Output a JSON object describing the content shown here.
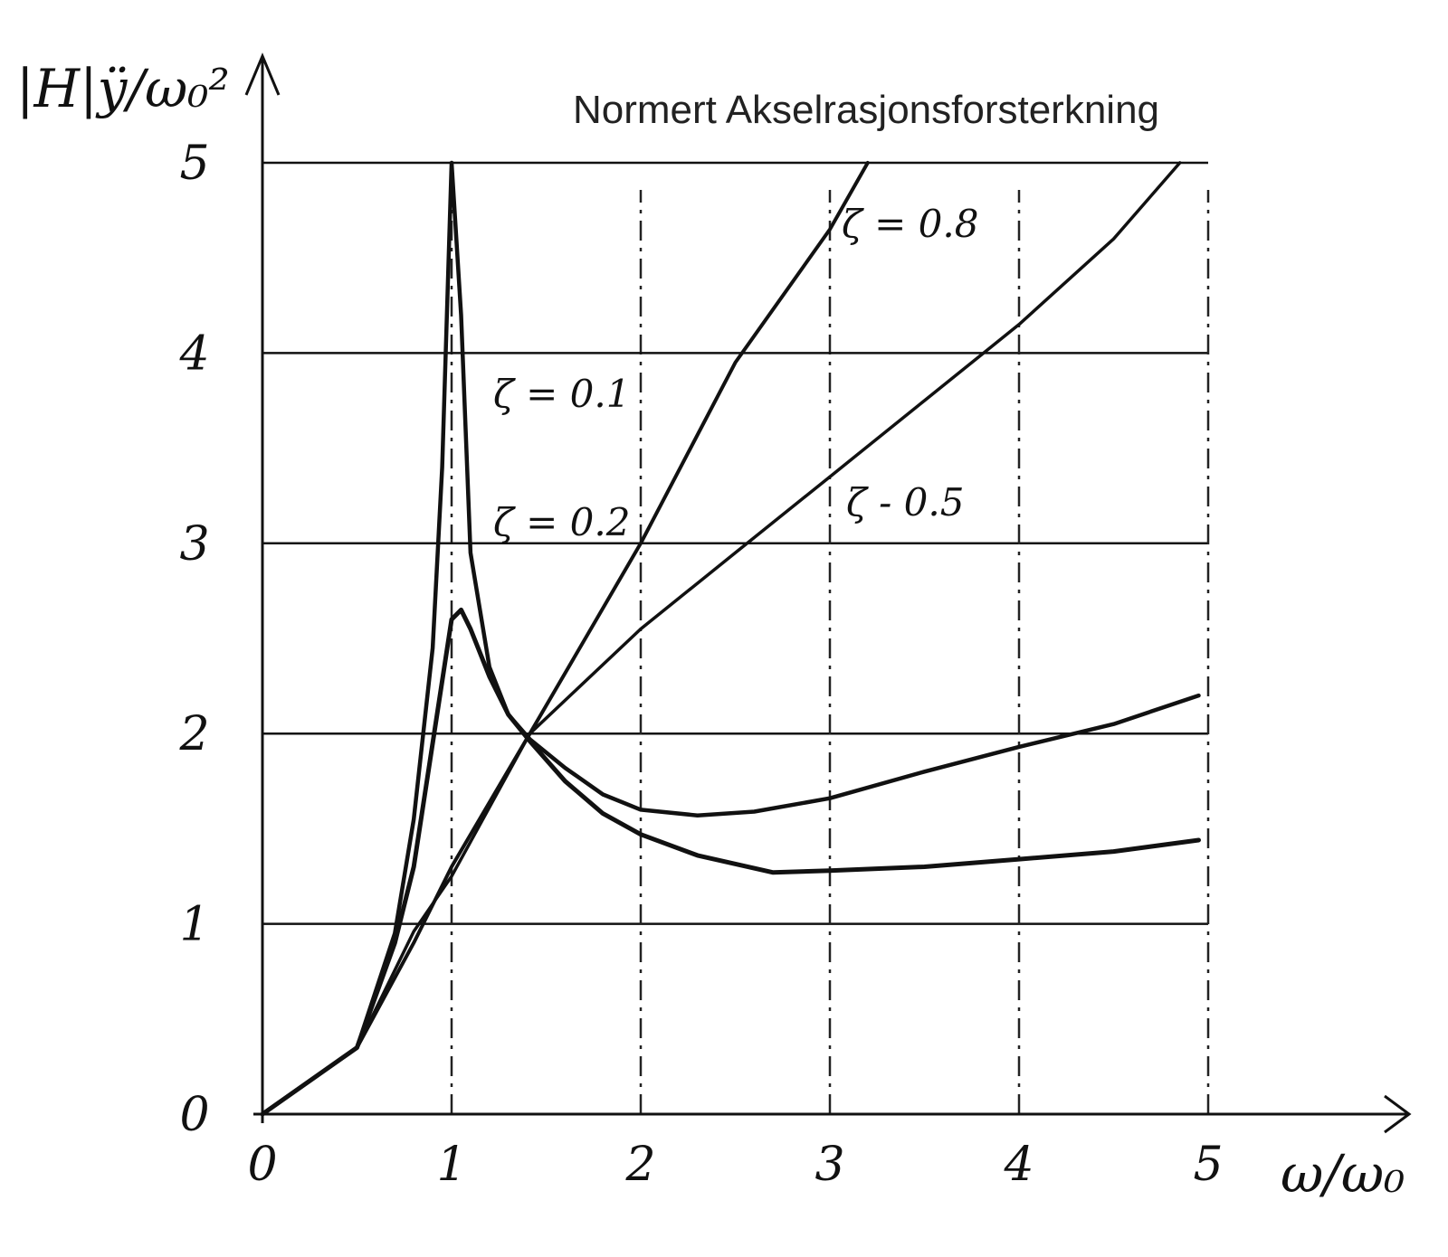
{
  "chart_data": {
    "type": "line",
    "title": "Normert Akselrasjonsforsterkning",
    "ylabel": "|H|ÿ/ω₀²",
    "xlabel": "ω/ω₀",
    "xlim": [
      0,
      5
    ],
    "ylim": [
      0,
      5
    ],
    "xticks": [
      "0",
      "1",
      "2",
      "3",
      "4",
      "5"
    ],
    "yticks": [
      "0",
      "1",
      "2",
      "3",
      "4",
      "5"
    ],
    "grid": true,
    "series": [
      {
        "name": "ζ = 0.1",
        "x": [
          0,
          0.5,
          0.7,
          0.8,
          0.9,
          0.95,
          1.0,
          1.05,
          1.1,
          1.2,
          1.3,
          1.414,
          1.6,
          1.8,
          2.0,
          2.3,
          2.6,
          3.0,
          3.5,
          4.0,
          4.5,
          4.95
        ],
        "y": [
          0,
          0.35,
          0.95,
          1.55,
          2.45,
          3.4,
          5.0,
          4.2,
          2.95,
          2.35,
          2.1,
          1.97,
          1.82,
          1.68,
          1.6,
          1.57,
          1.59,
          1.66,
          1.8,
          1.93,
          2.05,
          2.2
        ]
      },
      {
        "name": "ζ = 0.2",
        "x": [
          0,
          0.5,
          0.7,
          0.8,
          0.9,
          1.0,
          1.05,
          1.1,
          1.2,
          1.3,
          1.414,
          1.6,
          1.8,
          2.0,
          2.3,
          2.7,
          3.0,
          3.5,
          4.0,
          4.5,
          4.95
        ],
        "y": [
          0,
          0.35,
          0.9,
          1.3,
          1.95,
          2.6,
          2.65,
          2.55,
          2.3,
          2.1,
          1.96,
          1.75,
          1.58,
          1.47,
          1.36,
          1.27,
          1.28,
          1.3,
          1.34,
          1.38,
          1.44
        ]
      },
      {
        "name": "ζ = 0.5",
        "x": [
          0,
          0.5,
          0.8,
          1.0,
          1.414,
          2.0,
          2.5,
          3.0,
          3.5,
          4.0,
          4.5,
          4.85
        ],
        "y": [
          0,
          0.35,
          0.96,
          1.25,
          2.0,
          2.55,
          2.95,
          3.35,
          3.75,
          4.15,
          4.6,
          5.0
        ]
      },
      {
        "name": "ζ = 0.8",
        "x": [
          0,
          0.5,
          0.8,
          1.0,
          1.414,
          2.0,
          2.5,
          3.0,
          3.2
        ],
        "y": [
          0,
          0.35,
          0.9,
          1.3,
          2.0,
          3.0,
          3.95,
          4.65,
          5.0
        ]
      }
    ],
    "labels": [
      "ζ = 0.8",
      "ζ = 0.1",
      "ζ = 0.2",
      "ζ - 0.5"
    ]
  }
}
